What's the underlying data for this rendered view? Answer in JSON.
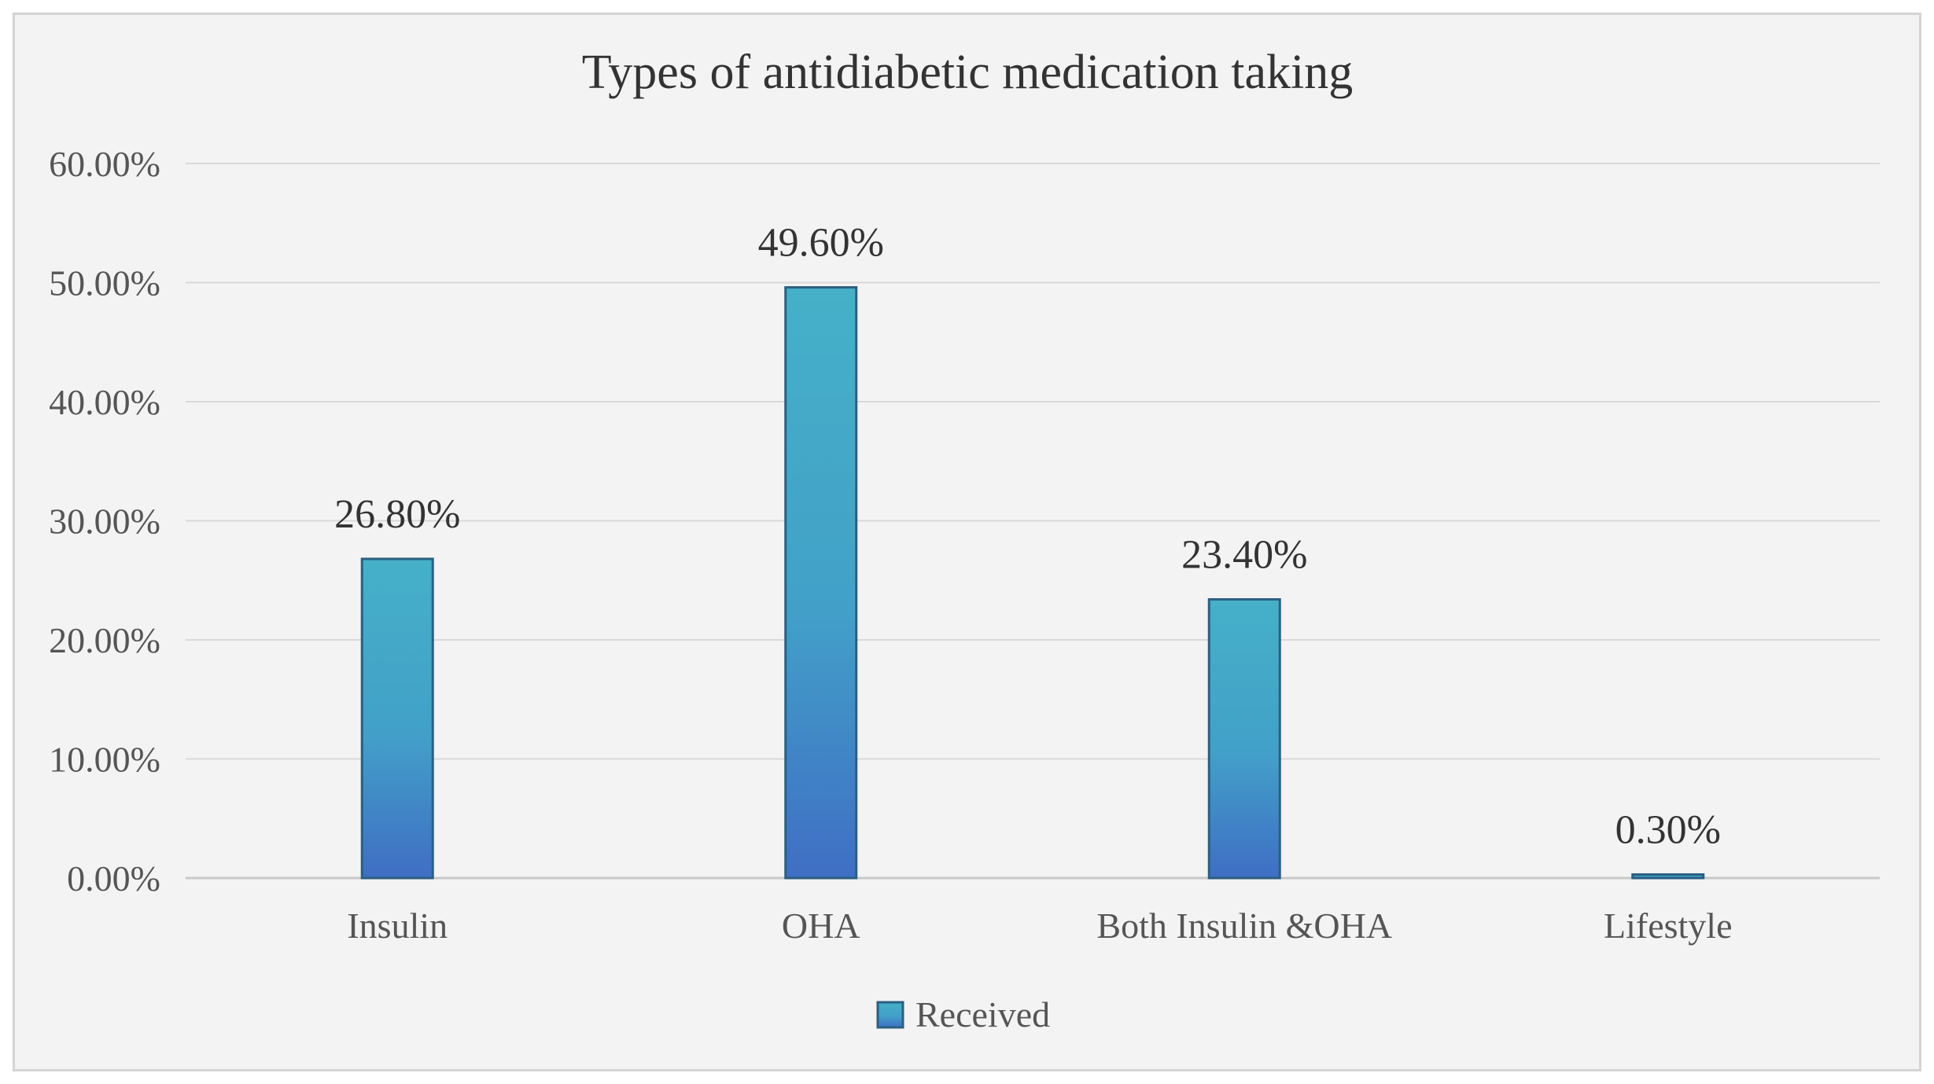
{
  "chart_data": {
    "type": "bar",
    "title": "Types of antidiabetic medication taking",
    "categories": [
      "Insulin",
      "OHA",
      "Both Insulin &OHA",
      "Lifestyle"
    ],
    "series": [
      {
        "name": "Received",
        "values": [
          26.8,
          49.6,
          23.4,
          0.3
        ],
        "labels": [
          "26.80%",
          "49.60%",
          "23.40%",
          "0.30%"
        ]
      }
    ],
    "ylim": [
      0,
      60
    ],
    "yticks": [
      0,
      10,
      20,
      30,
      40,
      50,
      60
    ],
    "ytick_labels": [
      "0.00%",
      "10.00%",
      "20.00%",
      "30.00%",
      "40.00%",
      "50.00%",
      "60.00%"
    ],
    "xlabel": "",
    "ylabel": "",
    "grid": true,
    "legend": "bottom-center",
    "colors": {
      "bar_top": "#45b0c8",
      "bar_bottom": "#3f6ec4",
      "bar_stroke": "#2b5f80",
      "grid": "#d9d9d9",
      "axis": "#c8c8c8"
    }
  }
}
